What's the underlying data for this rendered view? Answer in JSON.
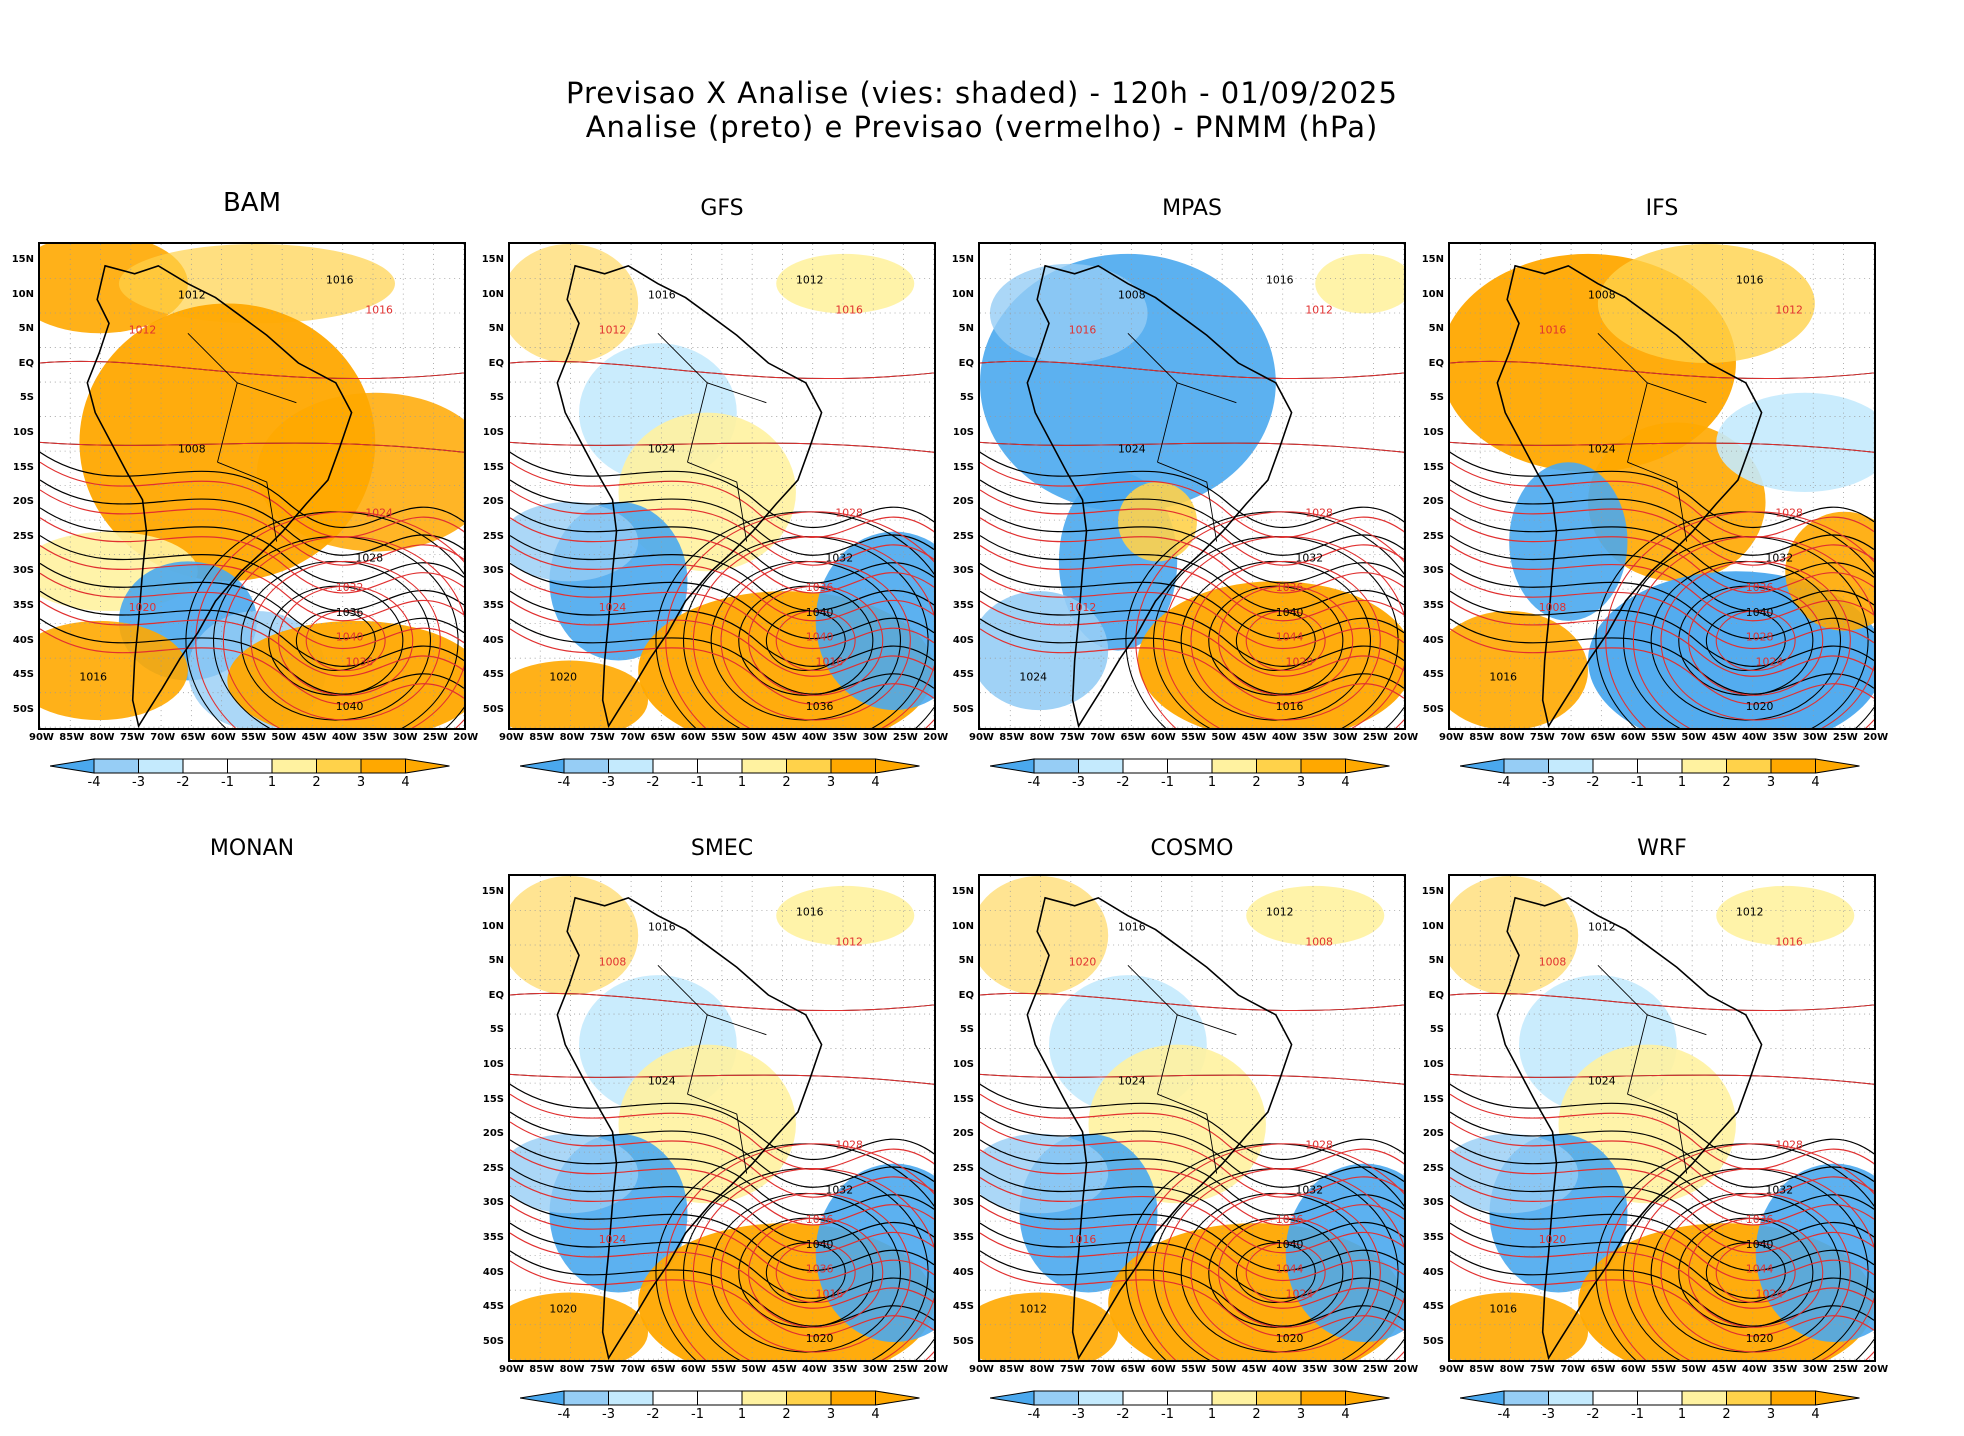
{
  "header": {
    "line1": "Previsao X Analise (vies: shaded) - 120h - 01/09/2025",
    "line2": "Analise (preto) e Previsao (vermelho) - PNMM (hPa)"
  },
  "colors": {
    "neg4": "#4aa8ee",
    "neg3": "#96cdf5",
    "neg2": "#c4eafd",
    "neg1": "#ffffff",
    "pos1": "#ffffff",
    "pos2": "#fff2a0",
    "pos3": "#ffd24a",
    "pos4": "#ffa800",
    "analysis": "#000000",
    "forecast": "#e03030"
  },
  "axes": {
    "lat_labels": [
      "15N",
      "10N",
      "5N",
      "EQ",
      "5S",
      "10S",
      "15S",
      "20S",
      "25S",
      "30S",
      "35S",
      "40S",
      "45S",
      "50S"
    ],
    "lon_labels": [
      "90W",
      "85W",
      "80W",
      "75W",
      "70W",
      "65W",
      "60W",
      "55W",
      "50W",
      "45W",
      "40W",
      "35W",
      "30W",
      "25W",
      "20W"
    ]
  },
  "colorbar_ticks": [
    "-4",
    "-3",
    "-2",
    "-1",
    "1",
    "2",
    "3",
    "4"
  ],
  "panels": [
    {
      "name": "BAM",
      "has_map": true,
      "bias": "warm",
      "labels": [
        "1016",
        "1016",
        "1012",
        "1012",
        "1008",
        "1024",
        "1028",
        "1032",
        "1036",
        "1040",
        "1040",
        "1036",
        "1016",
        "1020"
      ]
    },
    {
      "name": "GFS",
      "has_map": true,
      "bias": "mixed",
      "labels": [
        "1012",
        "1016",
        "1016",
        "1012",
        "1024",
        "1028",
        "1032",
        "1036",
        "1040",
        "1040",
        "1036",
        "1016",
        "1020",
        "1024"
      ]
    },
    {
      "name": "MPAS",
      "has_map": true,
      "bias": "cool",
      "labels": [
        "1016",
        "1012",
        "1008",
        "1016",
        "1024",
        "1028",
        "1032",
        "1036",
        "1040",
        "1044",
        "1016",
        "1020",
        "1024",
        "1012"
      ]
    },
    {
      "name": "IFS",
      "has_map": true,
      "bias": "cold-ocean",
      "labels": [
        "1016",
        "1012",
        "1008",
        "1016",
        "1024",
        "1028",
        "1032",
        "1036",
        "1040",
        "1028",
        "1020",
        "1024",
        "1016",
        "1008"
      ]
    },
    {
      "name": "MONAN",
      "has_map": false
    },
    {
      "name": "SMEC",
      "has_map": true,
      "bias": "mixed",
      "labels": [
        "1016",
        "1012",
        "1016",
        "1008",
        "1024",
        "1028",
        "1032",
        "1036",
        "1040",
        "1036",
        "1020",
        "1016",
        "1020",
        "1024"
      ]
    },
    {
      "name": "COSMO",
      "has_map": true,
      "bias": "mixed",
      "labels": [
        "1012",
        "1008",
        "1016",
        "1020",
        "1024",
        "1028",
        "1032",
        "1036",
        "1040",
        "1044",
        "1020",
        "1024",
        "1012",
        "1016"
      ]
    },
    {
      "name": "WRF",
      "has_map": true,
      "bias": "mixed",
      "labels": [
        "1012",
        "1016",
        "1012",
        "1008",
        "1024",
        "1028",
        "1032",
        "1036",
        "1040",
        "1044",
        "1020",
        "1024",
        "1016",
        "1020"
      ]
    }
  ]
}
